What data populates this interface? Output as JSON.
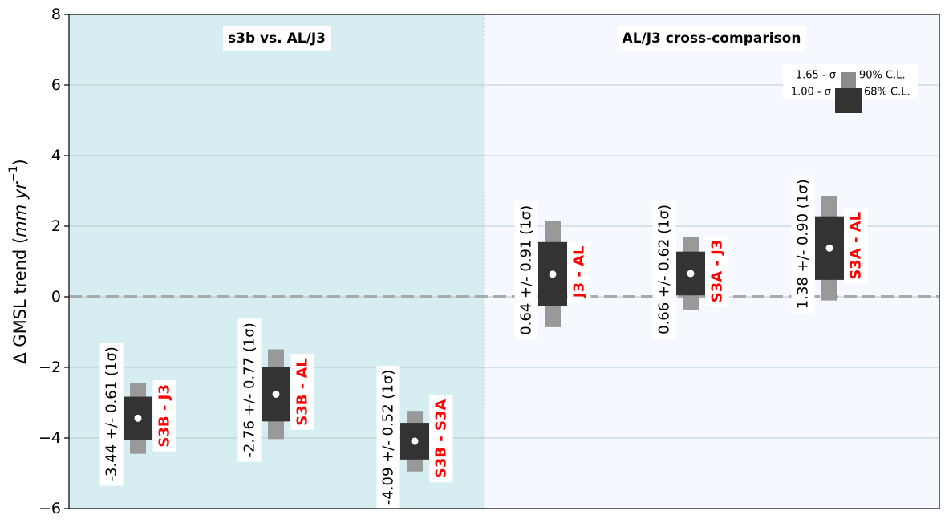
{
  "chart_data": {
    "type": "errorbar",
    "ylabel": "Δ GMSL trend (mm yr⁻¹)",
    "ylabel_parts": {
      "prefix": "Δ GMSL trend (",
      "unit": "mm yr",
      "exp": "−1",
      "suffix": ")"
    },
    "ylim": [
      -6,
      8
    ],
    "yticks": [
      -6,
      -4,
      -2,
      0,
      2,
      4,
      6,
      8
    ],
    "ytick_labels": [
      "−6",
      "−4",
      "−2",
      "0",
      "2",
      "4",
      "6",
      "8"
    ],
    "grid": "horizontal",
    "reference_line": 0,
    "panels": [
      {
        "title_parts": [
          "s3b vs",
          ".",
          " AL/J3"
        ],
        "background": "#d6eef1"
      },
      {
        "title": "AL/J3 cross-comparison",
        "background": "#f5f9ff"
      }
    ],
    "sigma_multipliers": {
      "inner": 1.0,
      "outer": 1.65
    },
    "legend": {
      "position": "top-right",
      "entries": [
        {
          "left": "1.65 - σ",
          "right": "90% C.L.",
          "color": "#8c8c8c"
        },
        {
          "left": "1.00 - σ",
          "right": "68% C.L.",
          "color": "#333333"
        }
      ]
    },
    "colors": {
      "inner": "#333333",
      "outer": "#999999",
      "pair_label": "#ff0000",
      "dashed_zero": "#aaaaaa"
    },
    "points": [
      {
        "pair": "S3B - J3",
        "trend": -3.44,
        "sigma": 0.61,
        "panel": 0,
        "text": "-3.44 +/- 0.61 (1σ)"
      },
      {
        "pair": "S3B - AL",
        "trend": -2.76,
        "sigma": 0.77,
        "panel": 0,
        "text": "-2.76 +/- 0.77 (1σ)"
      },
      {
        "pair": "S3B - S3A",
        "trend": -4.09,
        "sigma": 0.52,
        "panel": 0,
        "text": "-4.09 +/- 0.52 (1σ)"
      },
      {
        "pair": "J3 - AL",
        "trend": 0.64,
        "sigma": 0.91,
        "panel": 1,
        "text": "0.64 +/- 0.91 (1σ)"
      },
      {
        "pair": "S3A - J3",
        "trend": 0.66,
        "sigma": 0.62,
        "panel": 1,
        "text": "0.66 +/- 0.62 (1σ)"
      },
      {
        "pair": "S3A - AL",
        "trend": 1.38,
        "sigma": 0.9,
        "panel": 1,
        "text": "1.38 +/- 0.90 (1σ)"
      }
    ]
  }
}
